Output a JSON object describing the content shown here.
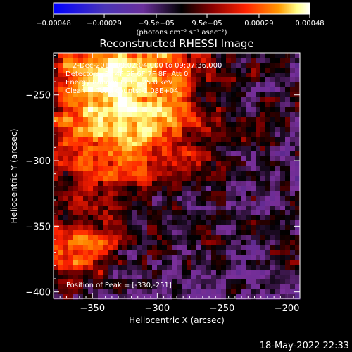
{
  "chart_data": {
    "type": "heatmap",
    "title": "Reconstructed RHESSI Image",
    "xlabel": "Heliocentric X (arcsec)",
    "ylabel": "Heliocentric Y (arcsec)",
    "xlim": [
      -380,
      -190
    ],
    "ylim": [
      -405,
      -218
    ],
    "x_ticks": [
      -350,
      -300,
      -250,
      -200
    ],
    "x_tick_labels": [
      "−350",
      "−300",
      "−250",
      "−200"
    ],
    "y_ticks": [
      -250,
      -300,
      -350,
      -400
    ],
    "y_tick_labels": [
      "−250",
      "−300",
      "−350",
      "−400"
    ],
    "colorbar": {
      "range": [
        -0.00048,
        0.00048
      ],
      "ticks": [
        -0.00048,
        -0.00029,
        -9.5e-05,
        9.5e-05,
        0.00029,
        0.00048
      ],
      "tick_labels": [
        "−0.00048",
        "−0.00029",
        "−9.5e−05",
        "9.5e−05",
        "0.00029",
        "0.00048"
      ],
      "unit_label": "(photons cm⁻² s⁻¹ asec⁻²)",
      "colormap": [
        "#0000ff",
        "#4a34b8",
        "#5b2a8f",
        "#7a2f9a",
        "#000000",
        "#8a0000",
        "#ff2200",
        "#ff8800",
        "#ffff88",
        "#ffffff"
      ]
    },
    "annotations": [
      "2-Dec-2013 09:02:04.000 to 09:07:36.000",
      "Detectors: 3F 4F 5F 6F 7F 8F, Att 0",
      "Energy Range: 12.0 - 25.0 keV",
      "Clean     Total counts: 1.08E+04"
    ],
    "peak_label": "Position of Peak = [-330,-251]",
    "peak": {
      "x": -330,
      "y": -251
    },
    "grid": false
  },
  "footer_timestamp": "18-May-2022 22:33"
}
